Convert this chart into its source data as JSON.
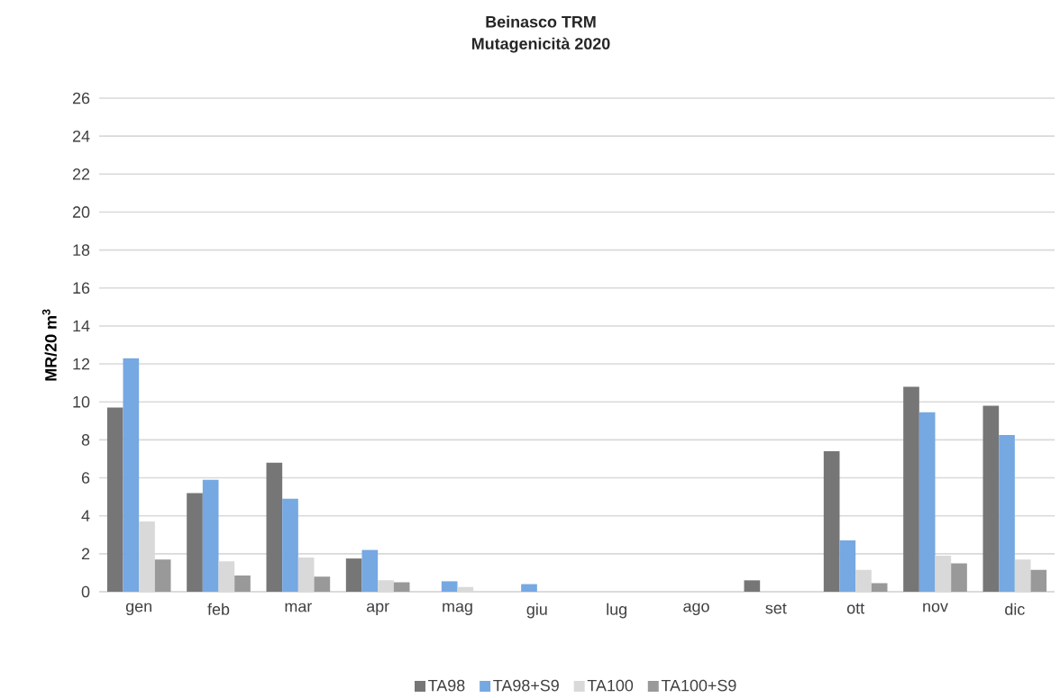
{
  "chart_data": {
    "type": "bar",
    "title": "Beinasco TRM",
    "subtitle": "Mutagenicità 2020",
    "ylabel": "MR/20 m$^{3}$",
    "categories": [
      "gen",
      "feb",
      "mar",
      "apr",
      "mag",
      "giu",
      "lug",
      "ago",
      "set",
      "ott",
      "nov",
      "dic"
    ],
    "series": [
      {
        "name": "TA98",
        "color": "#767676",
        "values": [
          9.7,
          5.2,
          6.8,
          1.75,
          0,
          0,
          0,
          0,
          0.6,
          7.4,
          10.8,
          9.8
        ]
      },
      {
        "name": "TA98+S9",
        "color": "#76a8e2",
        "values": [
          12.3,
          5.9,
          4.9,
          2.2,
          0.55,
          0.4,
          0,
          0,
          0,
          2.7,
          9.45,
          8.25
        ]
      },
      {
        "name": "TA100",
        "color": "#d9d9d9",
        "values": [
          3.7,
          1.6,
          1.8,
          0.6,
          0.25,
          0,
          0,
          0,
          0,
          1.15,
          1.9,
          1.7
        ]
      },
      {
        "name": "TA100+S9",
        "color": "#999999",
        "values": [
          1.7,
          0.85,
          0.8,
          0.5,
          0,
          0,
          0,
          0,
          0,
          0.45,
          1.5,
          1.15
        ]
      }
    ],
    "ylim": [
      0,
      26
    ],
    "yticks": [
      0,
      2,
      4,
      6,
      8,
      10,
      12,
      14,
      16,
      18,
      20,
      22,
      24,
      26
    ],
    "grid": "y",
    "legend": "bottom"
  }
}
